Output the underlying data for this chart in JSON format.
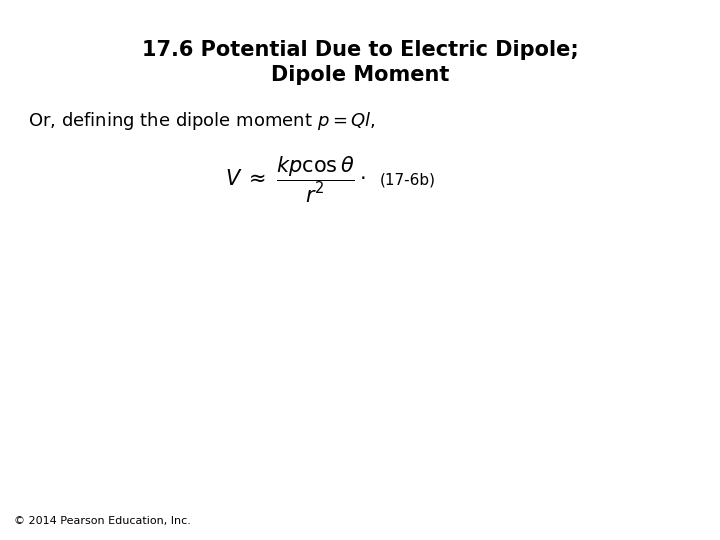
{
  "title_line1": "17.6 Potential Due to Electric Dipole;",
  "title_line2": "Dipole Moment",
  "subtitle": "Or, defining the dipole moment $p = \\mathit{Ql}$,",
  "formula": "$V \\;\\approx\\; \\dfrac{kp\\cos\\theta}{r^2}\\cdot$",
  "label": "(17-6b)",
  "footer": "© 2014 Pearson Education, Inc.",
  "bg_color": "#ffffff",
  "text_color": "#000000",
  "title_fontsize": 15,
  "subtitle_fontsize": 13,
  "formula_fontsize": 15,
  "label_fontsize": 11,
  "footer_fontsize": 8
}
